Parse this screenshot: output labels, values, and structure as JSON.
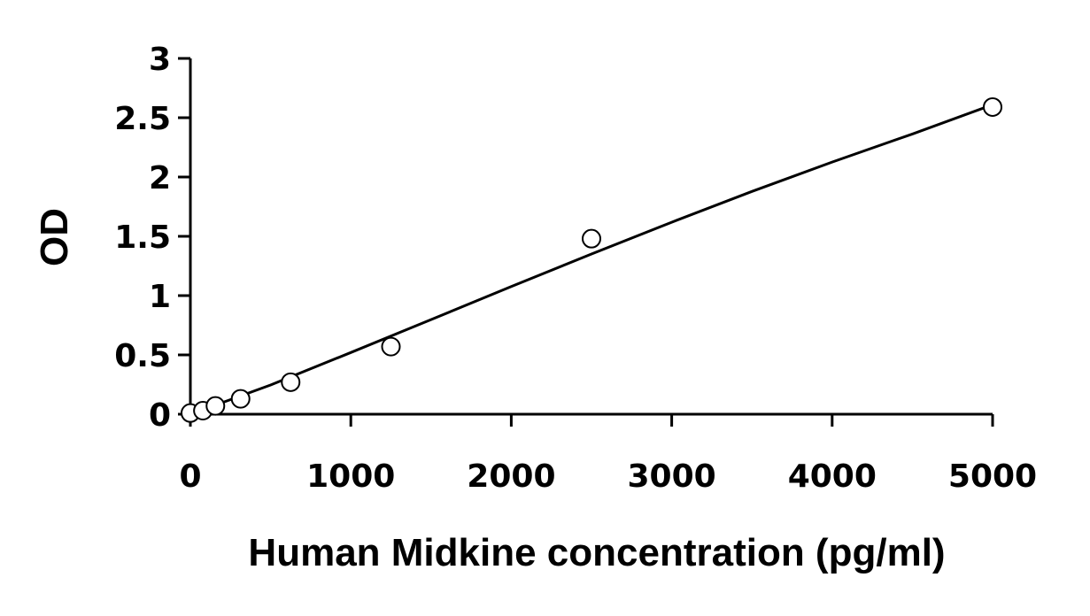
{
  "chart_data": {
    "type": "scatter",
    "title": "",
    "xlabel": "Human Midkine concentration (pg/ml)",
    "ylabel": "OD",
    "xlim": [
      0,
      5000
    ],
    "ylim": [
      0,
      3
    ],
    "x_ticks": [
      0,
      1000,
      2000,
      3000,
      4000,
      5000
    ],
    "y_ticks": [
      0,
      0.5,
      1,
      1.5,
      2,
      2.5,
      3
    ],
    "x_tick_labels": [
      "0",
      "1000",
      "2000",
      "3000",
      "4000",
      "5000"
    ],
    "y_tick_labels": [
      "0",
      "0.5",
      "1",
      "1.5",
      "2",
      "2.5",
      "3"
    ],
    "grid": false,
    "legend": "none",
    "series": [
      {
        "marker": "open-circle",
        "x": [
          0,
          78,
          156,
          313,
          625,
          1250,
          2500,
          5000
        ],
        "y": [
          0.01,
          0.03,
          0.07,
          0.13,
          0.27,
          0.57,
          1.48,
          2.59
        ]
      }
    ],
    "fit_curve": {
      "type": "polynomial",
      "x": [
        0,
        500,
        1000,
        1500,
        2000,
        2500,
        3000,
        3500,
        4000,
        4500,
        5000
      ],
      "y": [
        0.0,
        0.246,
        0.52,
        0.798,
        1.076,
        1.351,
        1.619,
        1.878,
        2.126,
        2.363,
        2.61
      ]
    },
    "colors": {
      "axis": "#000000",
      "marker_stroke": "#000000",
      "marker_fill": "#ffffff",
      "line": "#000000"
    }
  }
}
